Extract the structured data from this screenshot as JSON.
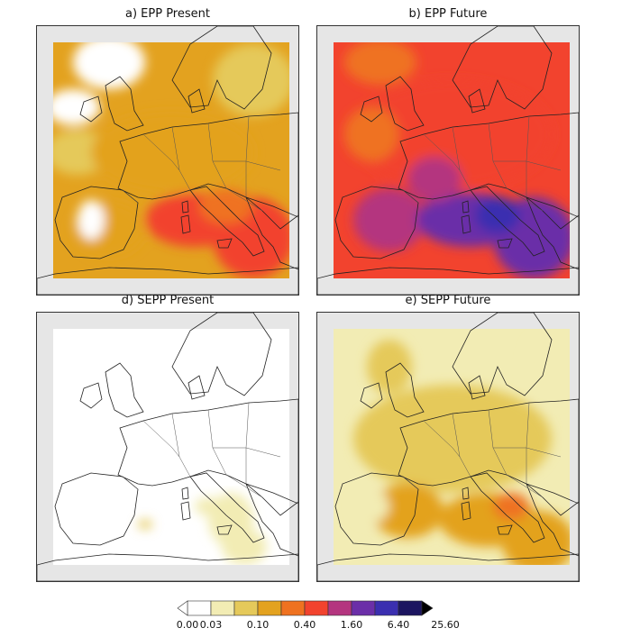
{
  "panels": [
    {
      "id": "a",
      "title": "a) EPP Present",
      "level": 0.35
    },
    {
      "id": "b",
      "title": "b) EPP Future",
      "level": 1.0
    },
    {
      "id": "d",
      "title": "d) SEPP Present",
      "level": 0.0
    },
    {
      "id": "e",
      "title": "e) SEPP Future",
      "level": 0.18
    }
  ],
  "colorbar": {
    "ticks": [
      "0.00",
      "0.03",
      "0.10",
      "0.40",
      "1.60",
      "6.40",
      "25.60"
    ],
    "colors": [
      "#ffffff",
      "#f2ecb4",
      "#e5c95a",
      "#e3a21f",
      "#ef7220",
      "#f2432e",
      "#b4357f",
      "#6b2fa8",
      "#3b2fb0",
      "#1c1560",
      "#000000"
    ]
  }
}
